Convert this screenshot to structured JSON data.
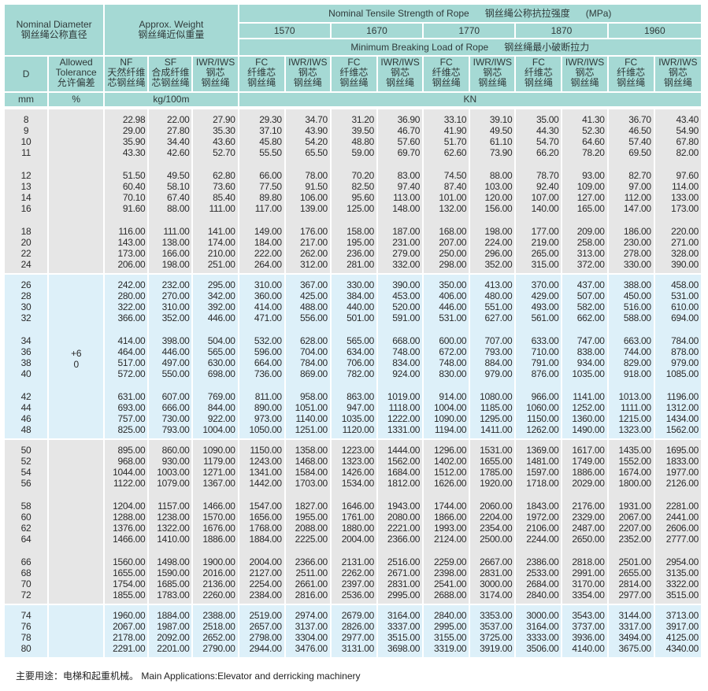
{
  "header": {
    "nominal_diameter": {
      "en": "Nominal Diameter",
      "zh": "钢丝绳公称直径"
    },
    "approx_weight": {
      "en": "Approx. Weight",
      "zh": "钢丝绳近似重量"
    },
    "tensile_strength": {
      "en": "Nominal Tensile Strength of Rope",
      "zh": "钢丝绳公称抗拉强度",
      "unit": "(MPa)"
    },
    "grades": [
      "1570",
      "1670",
      "1770",
      "1870",
      "1960"
    ],
    "breaking_load": {
      "en": "Minimum Breaking Load of Rope",
      "zh": "钢丝绳最小破断拉力"
    },
    "d": "D",
    "tolerance": {
      "l1": "Allowed",
      "l2": "Tolerance",
      "l3": "允许偏差"
    },
    "nf": {
      "l1": "NF",
      "l2": "天然纤维",
      "l3": "芯钢丝绳"
    },
    "sf": {
      "l1": "SF",
      "l2": "合成纤维",
      "l3": "芯钢丝绳"
    },
    "iwr_weight": {
      "l1": "IWR/IWS",
      "l2": "钢芯",
      "l3": "钢丝绳"
    },
    "fc": {
      "l1": "FC",
      "l2": "纤维芯",
      "l3": "钢丝绳"
    },
    "iwr": {
      "l1": "IWR/IWS",
      "l2": "钢芯",
      "l3": "钢丝绳"
    },
    "units": {
      "d": "mm",
      "tolerance": "%",
      "weight": "kg/100m",
      "load": "KN"
    }
  },
  "tolerance_value": {
    "upper": "+6",
    "lower": "0"
  },
  "bands": [
    [
      [
        [
          "8",
          "22.98",
          "22.00",
          "27.90",
          "29.30",
          "34.70",
          "31.20",
          "36.90",
          "33.10",
          "39.10",
          "35.00",
          "41.30",
          "36.70",
          "43.40"
        ],
        [
          "9",
          "29.00",
          "27.80",
          "35.30",
          "37.10",
          "43.90",
          "39.50",
          "46.70",
          "41.90",
          "49.50",
          "44.30",
          "52.30",
          "46.50",
          "54.90"
        ],
        [
          "10",
          "35.90",
          "34.40",
          "43.60",
          "45.80",
          "54.20",
          "48.80",
          "57.60",
          "51.70",
          "61.10",
          "54.70",
          "64.60",
          "57.40",
          "67.80"
        ],
        [
          "11",
          "43.30",
          "42.60",
          "52.70",
          "55.50",
          "65.50",
          "59.00",
          "69.70",
          "62.60",
          "73.90",
          "66.20",
          "78.20",
          "69.50",
          "82.00"
        ]
      ],
      [
        [
          "12",
          "51.50",
          "49.50",
          "62.80",
          "66.00",
          "78.00",
          "70.20",
          "83.00",
          "74.50",
          "88.00",
          "78.70",
          "93.00",
          "82.70",
          "97.60"
        ],
        [
          "13",
          "60.40",
          "58.10",
          "73.60",
          "77.50",
          "91.50",
          "82.50",
          "97.40",
          "87.40",
          "103.00",
          "92.40",
          "109.00",
          "97.00",
          "114.00"
        ],
        [
          "14",
          "70.10",
          "67.40",
          "85.40",
          "89.80",
          "106.00",
          "95.60",
          "113.00",
          "101.00",
          "120.00",
          "107.00",
          "127.00",
          "112.00",
          "133.00"
        ],
        [
          "16",
          "91.60",
          "88.00",
          "111.00",
          "117.00",
          "139.00",
          "125.00",
          "148.00",
          "132.00",
          "156.00",
          "140.00",
          "165.00",
          "147.00",
          "173.00"
        ]
      ],
      [
        [
          "18",
          "116.00",
          "111.00",
          "141.00",
          "149.00",
          "176.00",
          "158.00",
          "187.00",
          "168.00",
          "198.00",
          "177.00",
          "209.00",
          "186.00",
          "220.00"
        ],
        [
          "20",
          "143.00",
          "138.00",
          "174.00",
          "184.00",
          "217.00",
          "195.00",
          "231.00",
          "207.00",
          "224.00",
          "219.00",
          "258.00",
          "230.00",
          "271.00"
        ],
        [
          "22",
          "173.00",
          "166.00",
          "210.00",
          "222.00",
          "262.00",
          "236.00",
          "279.00",
          "250.00",
          "296.00",
          "265.00",
          "313.00",
          "278.00",
          "328.00"
        ],
        [
          "24",
          "206.00",
          "198.00",
          "251.00",
          "264.00",
          "312.00",
          "281.00",
          "332.00",
          "298.00",
          "352.00",
          "315.00",
          "372.00",
          "330.00",
          "390.00"
        ]
      ]
    ],
    [
      [
        [
          "26",
          "242.00",
          "232.00",
          "295.00",
          "310.00",
          "367.00",
          "330.00",
          "390.00",
          "350.00",
          "413.00",
          "370.00",
          "437.00",
          "388.00",
          "458.00"
        ],
        [
          "28",
          "280.00",
          "270.00",
          "342.00",
          "360.00",
          "425.00",
          "384.00",
          "453.00",
          "406.00",
          "480.00",
          "429.00",
          "507.00",
          "450.00",
          "531.00"
        ],
        [
          "30",
          "322.00",
          "310.00",
          "392.00",
          "414.00",
          "488.00",
          "440.00",
          "520.00",
          "446.00",
          "551.00",
          "493.00",
          "582.00",
          "516.00",
          "610.00"
        ],
        [
          "32",
          "366.00",
          "352.00",
          "446.00",
          "471.00",
          "556.00",
          "501.00",
          "591.00",
          "531.00",
          "627.00",
          "561.00",
          "662.00",
          "588.00",
          "694.00"
        ]
      ],
      [
        [
          "34",
          "414.00",
          "398.00",
          "504.00",
          "532.00",
          "628.00",
          "565.00",
          "668.00",
          "600.00",
          "707.00",
          "633.00",
          "747.00",
          "663.00",
          "784.00"
        ],
        [
          "36",
          "464.00",
          "446.00",
          "565.00",
          "596.00",
          "704.00",
          "634.00",
          "748.00",
          "672.00",
          "793.00",
          "710.00",
          "838.00",
          "744.00",
          "878.00"
        ],
        [
          "38",
          "517.00",
          "497.00",
          "630.00",
          "664.00",
          "784.00",
          "706.00",
          "834.00",
          "748.00",
          "884.00",
          "791.00",
          "934.00",
          "829.00",
          "979.00"
        ],
        [
          "40",
          "572.00",
          "550.00",
          "698.00",
          "736.00",
          "869.00",
          "782.00",
          "924.00",
          "830.00",
          "979.00",
          "876.00",
          "1035.00",
          "918.00",
          "1085.00"
        ]
      ],
      [
        [
          "42",
          "631.00",
          "607.00",
          "769.00",
          "811.00",
          "958.00",
          "863.00",
          "1019.00",
          "914.00",
          "1080.00",
          "966.00",
          "1141.00",
          "1013.00",
          "1196.00"
        ],
        [
          "44",
          "693.00",
          "666.00",
          "844.00",
          "890.00",
          "1051.00",
          "947.00",
          "1118.00",
          "1004.00",
          "1185.00",
          "1060.00",
          "1252.00",
          "1111.00",
          "1312.00"
        ],
        [
          "46",
          "757.00",
          "730.00",
          "922.00",
          "973.00",
          "1140.00",
          "1035.00",
          "1222.00",
          "1090.00",
          "1295.00",
          "1150.00",
          "1360.00",
          "1215.00",
          "1434.00"
        ],
        [
          "48",
          "825.00",
          "793.00",
          "1004.00",
          "1050.00",
          "1251.00",
          "1120.00",
          "1331.00",
          "1194.00",
          "1411.00",
          "1262.00",
          "1490.00",
          "1323.00",
          "1562.00"
        ]
      ]
    ],
    [
      [
        [
          "50",
          "895.00",
          "860.00",
          "1090.00",
          "1150.00",
          "1358.00",
          "1223.00",
          "1444.00",
          "1296.00",
          "1531.00",
          "1369.00",
          "1617.00",
          "1435.00",
          "1695.00"
        ],
        [
          "52",
          "968.00",
          "930.00",
          "1179.00",
          "1243.00",
          "1468.00",
          "1323.00",
          "1562.00",
          "1402.00",
          "1655.00",
          "1481.00",
          "1749.00",
          "1552.00",
          "1833.00"
        ],
        [
          "54",
          "1044.00",
          "1003.00",
          "1271.00",
          "1341.00",
          "1584.00",
          "1426.00",
          "1684.00",
          "1512.00",
          "1785.00",
          "1597.00",
          "1886.00",
          "1674.00",
          "1977.00"
        ],
        [
          "56",
          "1122.00",
          "1079.00",
          "1367.00",
          "1442.00",
          "1703.00",
          "1534.00",
          "1812.00",
          "1626.00",
          "1920.00",
          "1718.00",
          "2029.00",
          "1800.00",
          "2126.00"
        ]
      ],
      [
        [
          "58",
          "1204.00",
          "1157.00",
          "1466.00",
          "1547.00",
          "1827.00",
          "1646.00",
          "1943.00",
          "1744.00",
          "2060.00",
          "1843.00",
          "2176.00",
          "1931.00",
          "2281.00"
        ],
        [
          "60",
          "1288.00",
          "1238.00",
          "1570.00",
          "1656.00",
          "1955.00",
          "1761.00",
          "2080.00",
          "1866.00",
          "2204.00",
          "1972.00",
          "2329.00",
          "2067.00",
          "2441.00"
        ],
        [
          "62",
          "1376.00",
          "1322.00",
          "1676.00",
          "1768.00",
          "2088.00",
          "1880.00",
          "2221.00",
          "1993.00",
          "2354.00",
          "2106.00",
          "2487.00",
          "2207.00",
          "2606.00"
        ],
        [
          "64",
          "1466.00",
          "1410.00",
          "1886.00",
          "1884.00",
          "2225.00",
          "2004.00",
          "2366.00",
          "2124.00",
          "2500.00",
          "2244.00",
          "2650.00",
          "2352.00",
          "2777.00"
        ]
      ],
      [
        [
          "66",
          "1560.00",
          "1498.00",
          "1900.00",
          "2004.00",
          "2366.00",
          "2131.00",
          "2516.00",
          "2259.00",
          "2667.00",
          "2386.00",
          "2818.00",
          "2501.00",
          "2954.00"
        ],
        [
          "68",
          "1655.00",
          "1590.00",
          "2016.00",
          "2127.00",
          "2511.00",
          "2262.00",
          "2671.00",
          "2398.00",
          "2831.00",
          "2533.00",
          "2991.00",
          "2655.00",
          "3135.00"
        ],
        [
          "70",
          "1754.00",
          "1685.00",
          "2136.00",
          "2254.00",
          "2661.00",
          "2397.00",
          "2831.00",
          "2541.00",
          "3000.00",
          "2684.00",
          "3170.00",
          "2814.00",
          "3322.00"
        ],
        [
          "72",
          "1855.00",
          "1783.00",
          "2260.00",
          "2384.00",
          "2816.00",
          "2536.00",
          "2995.00",
          "2688.00",
          "3174.00",
          "2840.00",
          "3354.00",
          "2977.00",
          "3515.00"
        ]
      ]
    ],
    [
      [
        [
          "74",
          "1960.00",
          "1884.00",
          "2388.00",
          "2519.00",
          "2974.00",
          "2679.00",
          "3164.00",
          "2840.00",
          "3353.00",
          "3000.00",
          "3543.00",
          "3144.00",
          "3713.00"
        ],
        [
          "76",
          "2067.00",
          "1987.00",
          "2518.00",
          "2657.00",
          "3137.00",
          "2826.00",
          "3337.00",
          "2995.00",
          "3537.00",
          "3164.00",
          "3737.00",
          "3317.00",
          "3917.00"
        ],
        [
          "78",
          "2178.00",
          "2092.00",
          "2652.00",
          "2798.00",
          "3304.00",
          "2977.00",
          "3515.00",
          "3155.00",
          "3725.00",
          "3333.00",
          "3936.00",
          "3494.00",
          "4125.00"
        ],
        [
          "80",
          "2291.00",
          "2201.00",
          "2790.00",
          "2944.00",
          "3476.00",
          "3131.00",
          "3698.00",
          "3319.00",
          "3919.00",
          "3506.00",
          "4140.00",
          "3675.00",
          "4340.00"
        ]
      ]
    ]
  ],
  "band_colors": [
    "#e6e6e6",
    "#ddf0f9",
    "#e6e6e6",
    "#ddf0f9"
  ],
  "header_color": "#a5d9d4",
  "footer": {
    "zh": "主要用途：电梯和起重机械。",
    "en": "Main Applications:Elevator and derricking machinery"
  }
}
